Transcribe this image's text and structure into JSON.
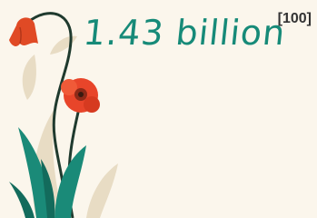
{
  "headline": "1.43 billion",
  "reference": "[100]"
}
